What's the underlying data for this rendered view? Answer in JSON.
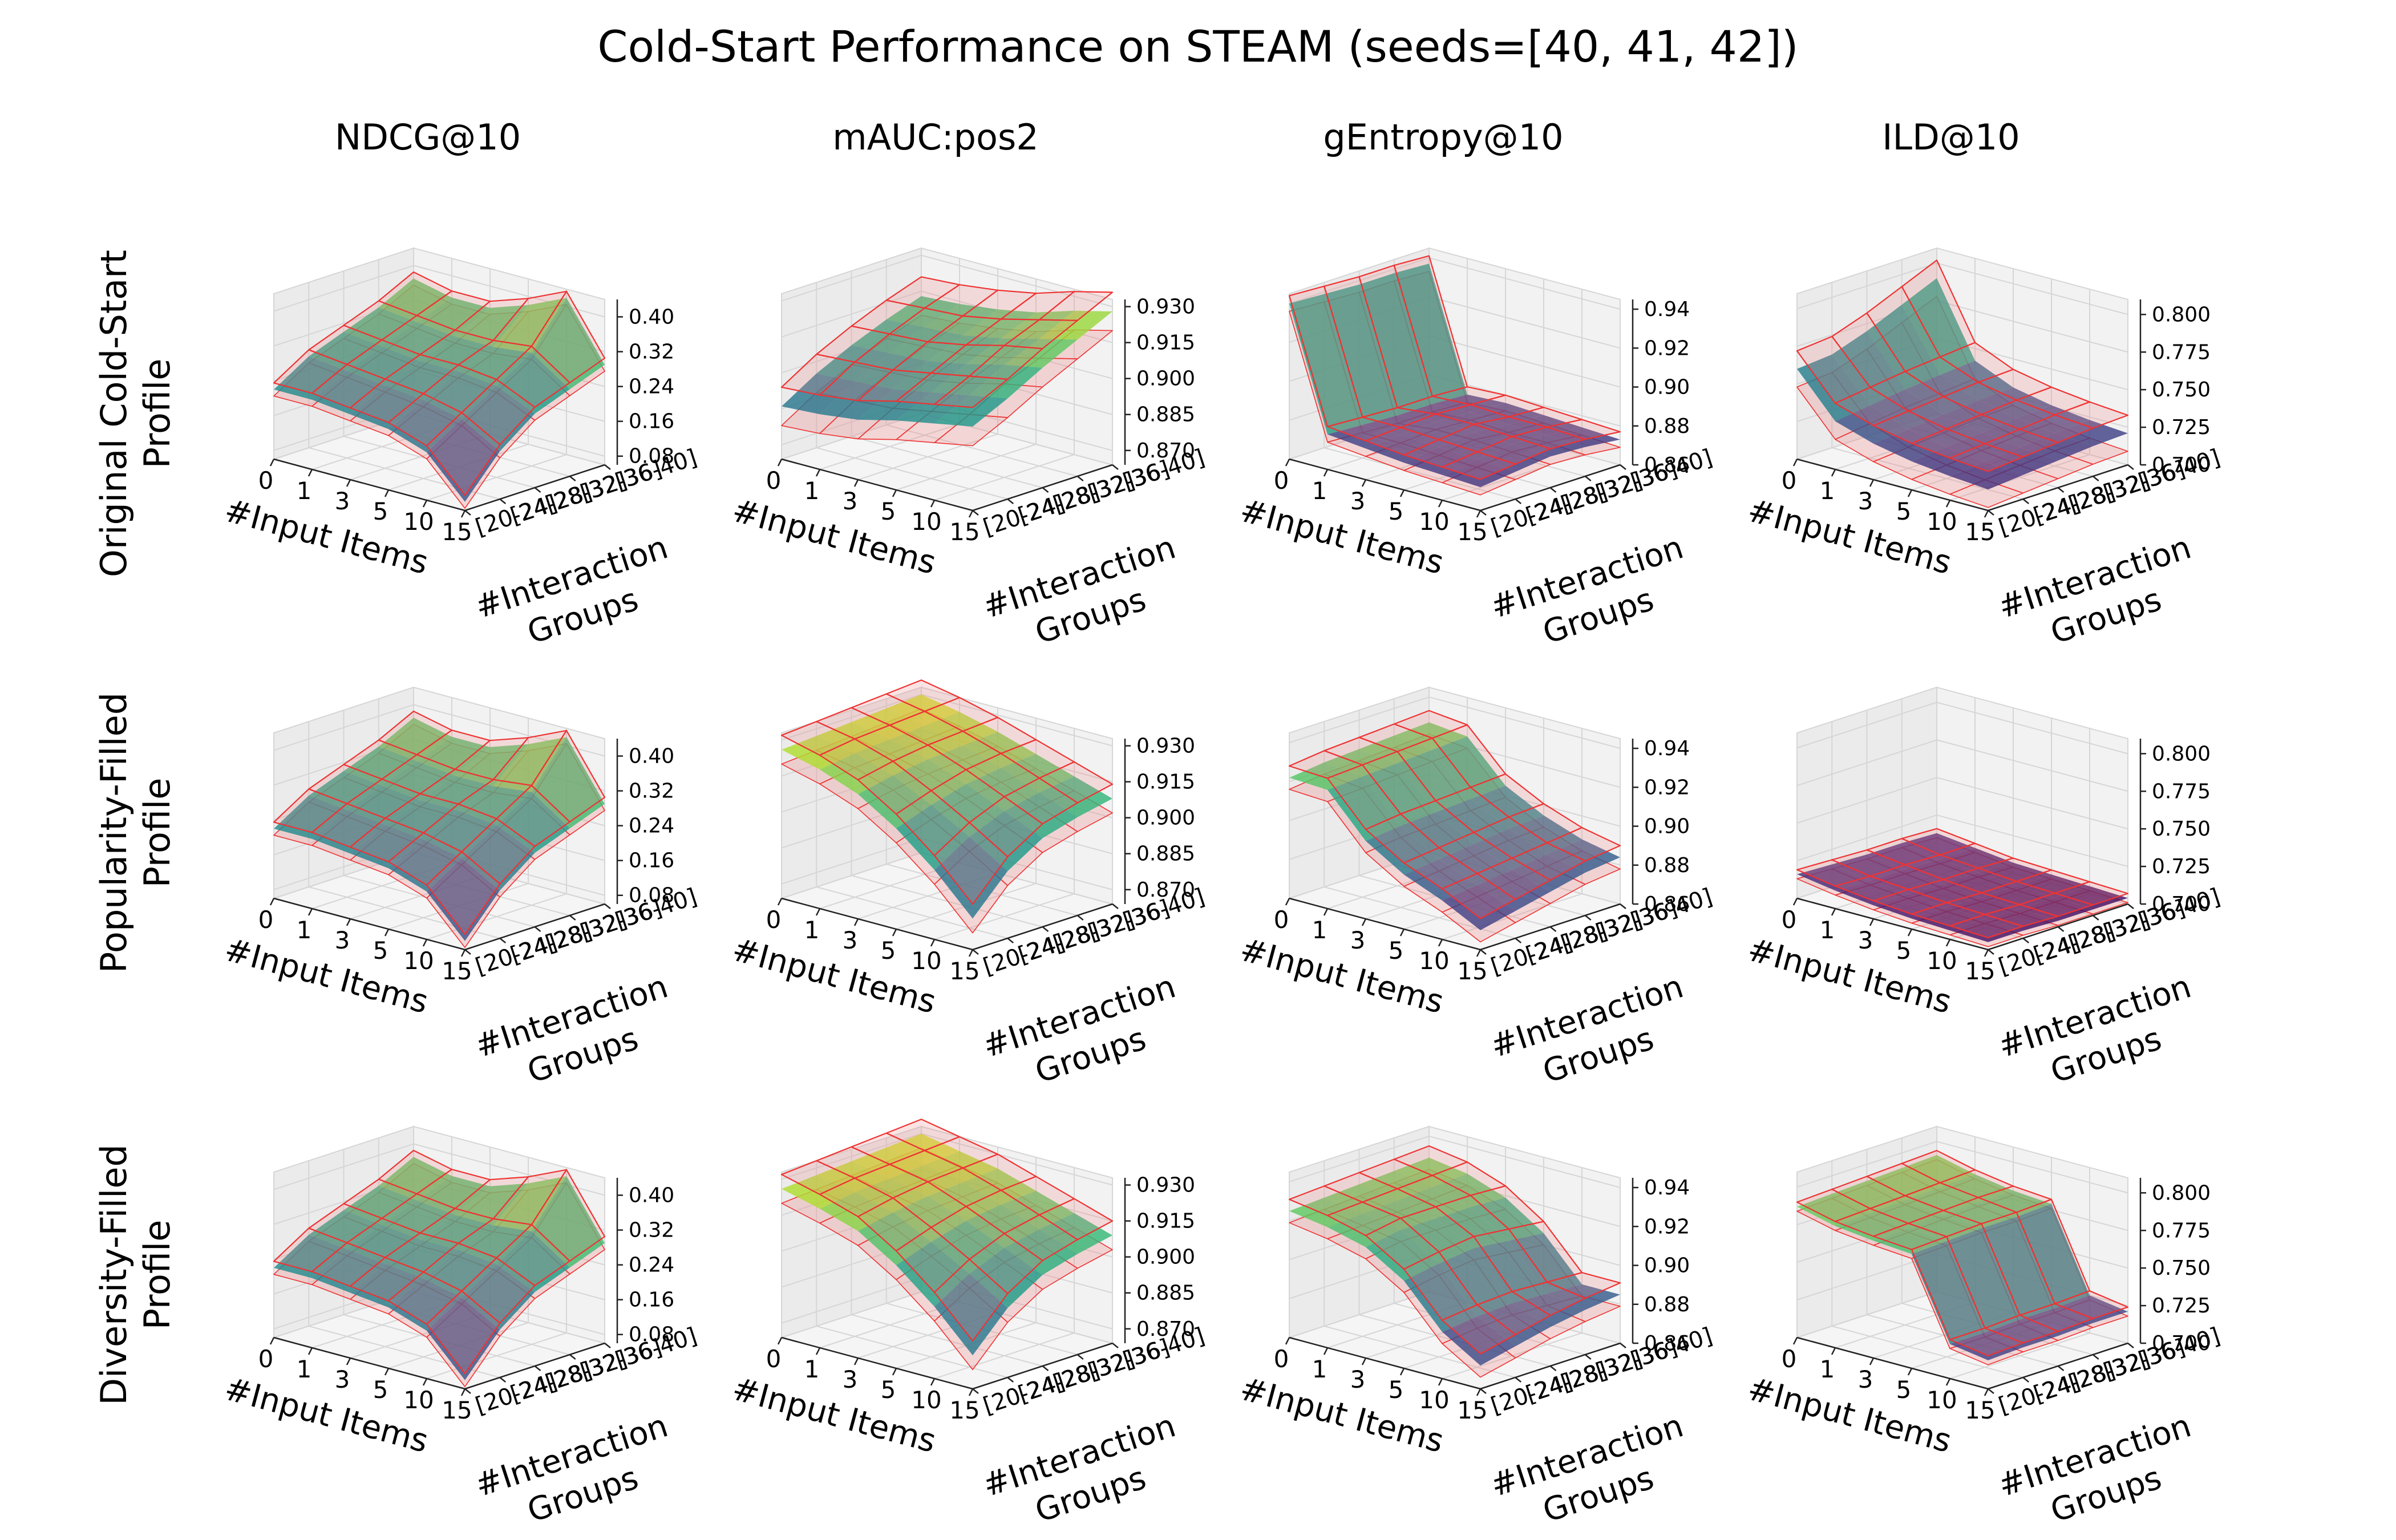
{
  "figure": {
    "suptitle": "Cold-Start Performance on STEAM (seeds=[40, 41, 42])",
    "columns": [
      "NDCG@10",
      "mAUC:pos2",
      "gEntropy@10",
      "ILD@10"
    ],
    "rows": [
      [
        "Original Cold-Start",
        "Profile"
      ],
      [
        "Popularity-Filled",
        "Profile"
      ],
      [
        "Diversity-Filled",
        "Profile"
      ]
    ],
    "x_axis": {
      "label": "#Input Items",
      "ticks": [
        "0",
        "1",
        "3",
        "5",
        "10",
        "15"
      ]
    },
    "y_axis": {
      "label": [
        "#Interaction",
        "Groups"
      ],
      "ticks": [
        "[20-24]",
        "[24-28]",
        "[28-32]",
        "[32-36]",
        "[36-40]"
      ]
    },
    "z_axes": [
      {
        "ticks": [
          "0.08",
          "0.16",
          "0.24",
          "0.32",
          "0.40"
        ],
        "range": [
          0.06,
          0.44
        ]
      },
      {
        "ticks": [
          "0.870",
          "0.885",
          "0.900",
          "0.915",
          "0.930"
        ],
        "range": [
          0.864,
          0.933
        ]
      },
      {
        "ticks": [
          "0.86",
          "0.88",
          "0.90",
          "0.92",
          "0.94"
        ],
        "range": [
          0.86,
          0.945
        ]
      },
      {
        "ticks": [
          "0.700",
          "0.725",
          "0.750",
          "0.775",
          "0.800"
        ],
        "range": [
          0.7,
          0.81
        ]
      }
    ],
    "colormap": "viridis",
    "wire_color": "#ee3333",
    "band_fill": "#f08080"
  },
  "chart_data": [
    {
      "type": "surface",
      "row": "Original Cold-Start Profile",
      "metric": "NDCG@10",
      "x": [
        "0",
        "1",
        "3",
        "5",
        "10",
        "15"
      ],
      "y": [
        "[20-24]",
        "[24-28]",
        "[28-32]",
        "[32-36]",
        "[36-40]"
      ],
      "z": [
        [
          0.22,
          0.27,
          0.3,
          0.33,
          0.37
        ],
        [
          0.22,
          0.26,
          0.29,
          0.32,
          0.35
        ],
        [
          0.21,
          0.25,
          0.28,
          0.31,
          0.35
        ],
        [
          0.2,
          0.24,
          0.28,
          0.31,
          0.38
        ],
        [
          0.17,
          0.22,
          0.27,
          0.32,
          0.42
        ],
        [
          0.08,
          0.17,
          0.23,
          0.26,
          0.29
        ]
      ],
      "band": 0.015
    },
    {
      "type": "surface",
      "row": "Original Cold-Start Profile",
      "metric": "mAUC:pos2",
      "x": [
        "0",
        "1",
        "3",
        "5",
        "10",
        "15"
      ],
      "y": [
        "[20-24]",
        "[24-28]",
        "[28-32]",
        "[32-36]",
        "[36-40]"
      ],
      "z": [
        [
          0.886,
          0.895,
          0.902,
          0.908,
          0.913
        ],
        [
          0.887,
          0.896,
          0.903,
          0.909,
          0.914
        ],
        [
          0.889,
          0.897,
          0.904,
          0.91,
          0.916
        ],
        [
          0.893,
          0.9,
          0.907,
          0.913,
          0.919
        ],
        [
          0.896,
          0.903,
          0.911,
          0.917,
          0.924
        ],
        [
          0.899,
          0.906,
          0.914,
          0.921,
          0.928
        ]
      ],
      "band": 0.008
    },
    {
      "type": "surface",
      "row": "Original Cold-Start Profile",
      "metric": "gEntropy@10",
      "x": [
        "0",
        "1",
        "3",
        "5",
        "10",
        "15"
      ],
      "y": [
        "[20-24]",
        "[24-28]",
        "[28-32]",
        "[32-36]",
        "[36-40]"
      ],
      "z": [
        [
          0.94,
          0.939,
          0.938,
          0.938,
          0.937
        ],
        [
          0.878,
          0.877,
          0.876,
          0.876,
          0.875
        ],
        [
          0.876,
          0.877,
          0.878,
          0.877,
          0.876
        ],
        [
          0.874,
          0.876,
          0.878,
          0.876,
          0.875
        ],
        [
          0.873,
          0.875,
          0.877,
          0.876,
          0.874
        ],
        [
          0.872,
          0.874,
          0.876,
          0.875,
          0.873
        ]
      ],
      "band": 0.004
    },
    {
      "type": "surface",
      "row": "Original Cold-Start Profile",
      "metric": "ILD@10",
      "x": [
        "0",
        "1",
        "3",
        "5",
        "10",
        "15"
      ],
      "y": [
        "[20-24]",
        "[24-28]",
        "[28-32]",
        "[32-36]",
        "[36-40]"
      ],
      "z": [
        [
          0.76,
          0.762,
          0.77,
          0.78,
          0.79
        ],
        [
          0.732,
          0.735,
          0.738,
          0.74,
          0.742
        ],
        [
          0.724,
          0.726,
          0.728,
          0.73,
          0.731
        ],
        [
          0.719,
          0.721,
          0.723,
          0.725,
          0.726
        ],
        [
          0.716,
          0.718,
          0.72,
          0.722,
          0.723
        ],
        [
          0.714,
          0.716,
          0.718,
          0.72,
          0.721
        ]
      ],
      "band": 0.012
    },
    {
      "type": "surface",
      "row": "Popularity-Filled Profile",
      "metric": "NDCG@10",
      "x": [
        "0",
        "1",
        "3",
        "5",
        "10",
        "15"
      ],
      "y": [
        "[20-24]",
        "[24-28]",
        "[28-32]",
        "[32-36]",
        "[36-40]"
      ],
      "z": [
        [
          0.22,
          0.27,
          0.3,
          0.33,
          0.37
        ],
        [
          0.22,
          0.26,
          0.29,
          0.32,
          0.35
        ],
        [
          0.21,
          0.25,
          0.28,
          0.31,
          0.35
        ],
        [
          0.2,
          0.24,
          0.28,
          0.31,
          0.38
        ],
        [
          0.17,
          0.22,
          0.27,
          0.32,
          0.42
        ],
        [
          0.08,
          0.17,
          0.23,
          0.26,
          0.29
        ]
      ],
      "band": 0.015
    },
    {
      "type": "surface",
      "row": "Popularity-Filled Profile",
      "metric": "mAUC:pos2",
      "x": [
        "0",
        "1",
        "3",
        "5",
        "10",
        "15"
      ],
      "y": [
        "[20-24]",
        "[24-28]",
        "[28-32]",
        "[32-36]",
        "[36-40]"
      ],
      "z": [
        [
          0.926,
          0.927,
          0.928,
          0.929,
          0.93
        ],
        [
          0.922,
          0.924,
          0.925,
          0.926,
          0.927
        ],
        [
          0.916,
          0.919,
          0.921,
          0.922,
          0.923
        ],
        [
          0.906,
          0.911,
          0.915,
          0.917,
          0.918
        ],
        [
          0.893,
          0.902,
          0.908,
          0.911,
          0.913
        ],
        [
          0.877,
          0.892,
          0.901,
          0.905,
          0.908
        ]
      ],
      "band": 0.006
    },
    {
      "type": "surface",
      "row": "Popularity-Filled Profile",
      "metric": "gEntropy@10",
      "x": [
        "0",
        "1",
        "3",
        "5",
        "10",
        "15"
      ],
      "y": [
        "[20-24]",
        "[24-28]",
        "[28-32]",
        "[32-36]",
        "[36-40]"
      ],
      "z": [
        [
          0.922,
          0.924,
          0.925,
          0.926,
          0.927
        ],
        [
          0.921,
          0.922,
          0.923,
          0.924,
          0.925
        ],
        [
          0.9,
          0.902,
          0.903,
          0.904,
          0.905
        ],
        [
          0.888,
          0.89,
          0.892,
          0.894,
          0.895
        ],
        [
          0.88,
          0.882,
          0.884,
          0.886,
          0.888
        ],
        [
          0.87,
          0.874,
          0.878,
          0.882,
          0.884
        ]
      ],
      "band": 0.006
    },
    {
      "type": "surface",
      "row": "Popularity-Filled Profile",
      "metric": "ILD@10",
      "x": [
        "0",
        "1",
        "3",
        "5",
        "10",
        "15"
      ],
      "y": [
        "[20-24]",
        "[24-28]",
        "[28-32]",
        "[32-36]",
        "[36-40]"
      ],
      "z": [
        [
          0.716,
          0.715,
          0.714,
          0.714,
          0.713
        ],
        [
          0.712,
          0.711,
          0.711,
          0.71,
          0.71
        ],
        [
          0.709,
          0.709,
          0.708,
          0.708,
          0.707
        ],
        [
          0.707,
          0.707,
          0.706,
          0.706,
          0.706
        ],
        [
          0.706,
          0.706,
          0.705,
          0.705,
          0.705
        ],
        [
          0.705,
          0.705,
          0.704,
          0.704,
          0.704
        ]
      ],
      "band": 0.003
    },
    {
      "type": "surface",
      "row": "Diversity-Filled Profile",
      "metric": "NDCG@10",
      "x": [
        "0",
        "1",
        "3",
        "5",
        "10",
        "15"
      ],
      "y": [
        "[20-24]",
        "[24-28]",
        "[28-32]",
        "[32-36]",
        "[36-40]"
      ],
      "z": [
        [
          0.22,
          0.27,
          0.3,
          0.33,
          0.37
        ],
        [
          0.22,
          0.26,
          0.29,
          0.32,
          0.35
        ],
        [
          0.21,
          0.25,
          0.28,
          0.31,
          0.35
        ],
        [
          0.2,
          0.24,
          0.28,
          0.31,
          0.38
        ],
        [
          0.17,
          0.22,
          0.27,
          0.32,
          0.42
        ],
        [
          0.08,
          0.17,
          0.23,
          0.26,
          0.29
        ]
      ],
      "band": 0.015
    },
    {
      "type": "surface",
      "row": "Diversity-Filled Profile",
      "metric": "mAUC:pos2",
      "x": [
        "0",
        "1",
        "3",
        "5",
        "10",
        "15"
      ],
      "y": [
        "[20-24]",
        "[24-28]",
        "[28-32]",
        "[32-36]",
        "[36-40]"
      ],
      "z": [
        [
          0.926,
          0.927,
          0.928,
          0.929,
          0.93
        ],
        [
          0.922,
          0.924,
          0.925,
          0.926,
          0.927
        ],
        [
          0.917,
          0.92,
          0.922,
          0.923,
          0.924
        ],
        [
          0.907,
          0.912,
          0.916,
          0.918,
          0.919
        ],
        [
          0.894,
          0.903,
          0.909,
          0.912,
          0.914
        ],
        [
          0.878,
          0.893,
          0.902,
          0.906,
          0.909
        ]
      ],
      "band": 0.006
    },
    {
      "type": "surface",
      "row": "Diversity-Filled Profile",
      "metric": "gEntropy@10",
      "x": [
        "0",
        "1",
        "3",
        "5",
        "10",
        "15"
      ],
      "y": [
        "[20-24]",
        "[24-28]",
        "[28-32]",
        "[32-36]",
        "[36-40]"
      ],
      "z": [
        [
          0.925,
          0.926,
          0.927,
          0.928,
          0.929
        ],
        [
          0.922,
          0.923,
          0.924,
          0.925,
          0.926
        ],
        [
          0.917,
          0.92,
          0.92,
          0.92,
          0.919
        ],
        [
          0.905,
          0.908,
          0.91,
          0.908,
          0.906
        ],
        [
          0.884,
          0.886,
          0.887,
          0.886,
          0.885
        ],
        [
          0.872,
          0.876,
          0.88,
          0.883,
          0.885
        ]
      ],
      "band": 0.006
    },
    {
      "type": "surface",
      "row": "Diversity-Filled Profile",
      "metric": "ILD@10",
      "x": [
        "0",
        "1",
        "3",
        "5",
        "10",
        "15"
      ],
      "y": [
        "[20-24]",
        "[24-28]",
        "[28-32]",
        "[32-36]",
        "[36-40]"
      ],
      "z": [
        [
          0.787,
          0.788,
          0.789,
          0.79,
          0.791
        ],
        [
          0.781,
          0.782,
          0.783,
          0.784,
          0.785
        ],
        [
          0.778,
          0.779,
          0.78,
          0.781,
          0.781
        ],
        [
          0.776,
          0.777,
          0.778,
          0.778,
          0.779
        ],
        [
          0.723,
          0.723,
          0.724,
          0.724,
          0.725
        ],
        [
          0.719,
          0.72,
          0.72,
          0.721,
          0.721
        ]
      ],
      "band": 0.003
    }
  ]
}
